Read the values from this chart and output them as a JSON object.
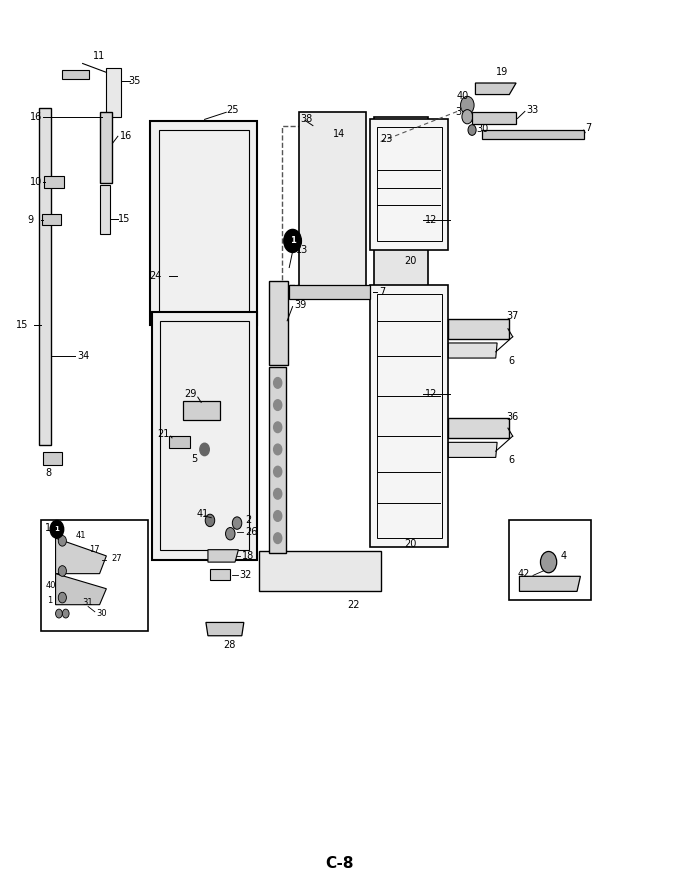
{
  "bg_color": "#ffffff",
  "bottom_label": "C-8",
  "title_fontsize": 11,
  "fig_width": 6.8,
  "fig_height": 8.9,
  "dpi": 100
}
